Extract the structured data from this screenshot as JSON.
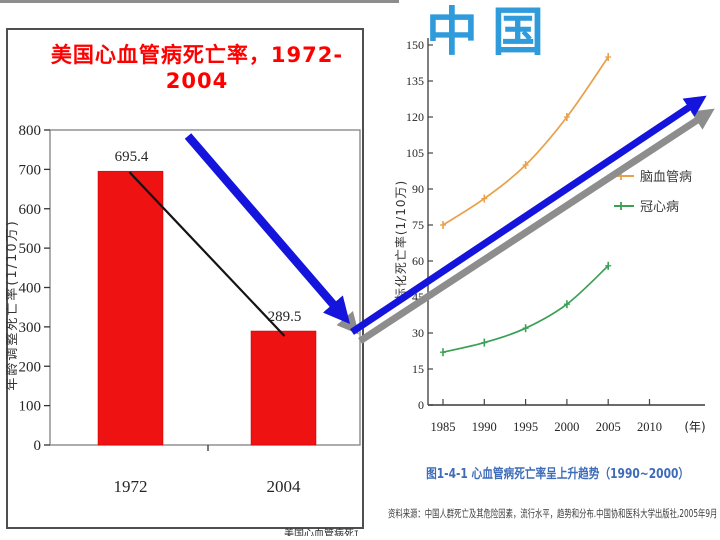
{
  "page": {
    "clipped_text_fragment": "美国心血管病死亡率变化"
  },
  "colors": {
    "title_red": "#fe0000",
    "bar_red": "#ee1212",
    "arrow_blue": "#1414dd",
    "arrow_gray": "#8d8d8d",
    "china_blue": "#2f9bdb",
    "caption_blue": "#3e6cb8",
    "series_orange": "#e8a04a",
    "series_green": "#3aa054",
    "axis_dark": "#555555"
  },
  "left_panel": {
    "title": "美国心血管病死亡率，1972-2004"
  },
  "right_panel": {
    "title": "中国",
    "caption": "图1-4-1 心血管病死亡率呈上升趋势（1990~2000）",
    "source": "资料来源：中国人群死亡及其危险因素，流行水平，趋势和分布.中国协和医科大学出版社,2005年9月"
  },
  "chart_data": [
    {
      "type": "bar",
      "title": "美国心血管病死亡率，1972-2004",
      "categories": [
        "1972",
        "2004"
      ],
      "values": [
        695.4,
        289.5
      ],
      "value_labels": [
        "695.4",
        "289.5"
      ],
      "bar_color": "#ee1212",
      "ylabel": "年龄调整死亡率(1/10万)",
      "xlabel": "",
      "ylim": [
        0,
        800
      ],
      "ytick_step": 100,
      "grid": false,
      "annotations": [
        "decline line from 1972 bar top to 2004 bar top",
        "blue downward trend arrow"
      ]
    },
    {
      "type": "line",
      "title": "中国",
      "x": [
        1985,
        1990,
        1995,
        2000,
        2005
      ],
      "xticks": [
        1985,
        1990,
        1995,
        2000,
        2005,
        2010
      ],
      "x_unit": "(年)",
      "ylabel": "标化死亡率(1/10万)",
      "ylim": [
        0,
        150
      ],
      "ytick_step": 15,
      "grid": false,
      "legend_position": "right",
      "series": [
        {
          "name": "脑血管病",
          "color": "#e8a04a",
          "values": [
            75,
            86,
            100,
            120,
            145
          ]
        },
        {
          "name": "冠心病",
          "color": "#3aa054",
          "values": [
            22,
            26,
            32,
            42,
            58
          ]
        }
      ],
      "caption": "图1-4-1 心血管病死亡率呈上升趋势（1990~2000）",
      "source": "资料来源：中国人群死亡及其危险因素，流行水平，趋势和分布.中国协和医科大学出版社,2005年9月",
      "annotations": [
        "blue upward trend arrow with gray parallel arrow"
      ]
    }
  ]
}
